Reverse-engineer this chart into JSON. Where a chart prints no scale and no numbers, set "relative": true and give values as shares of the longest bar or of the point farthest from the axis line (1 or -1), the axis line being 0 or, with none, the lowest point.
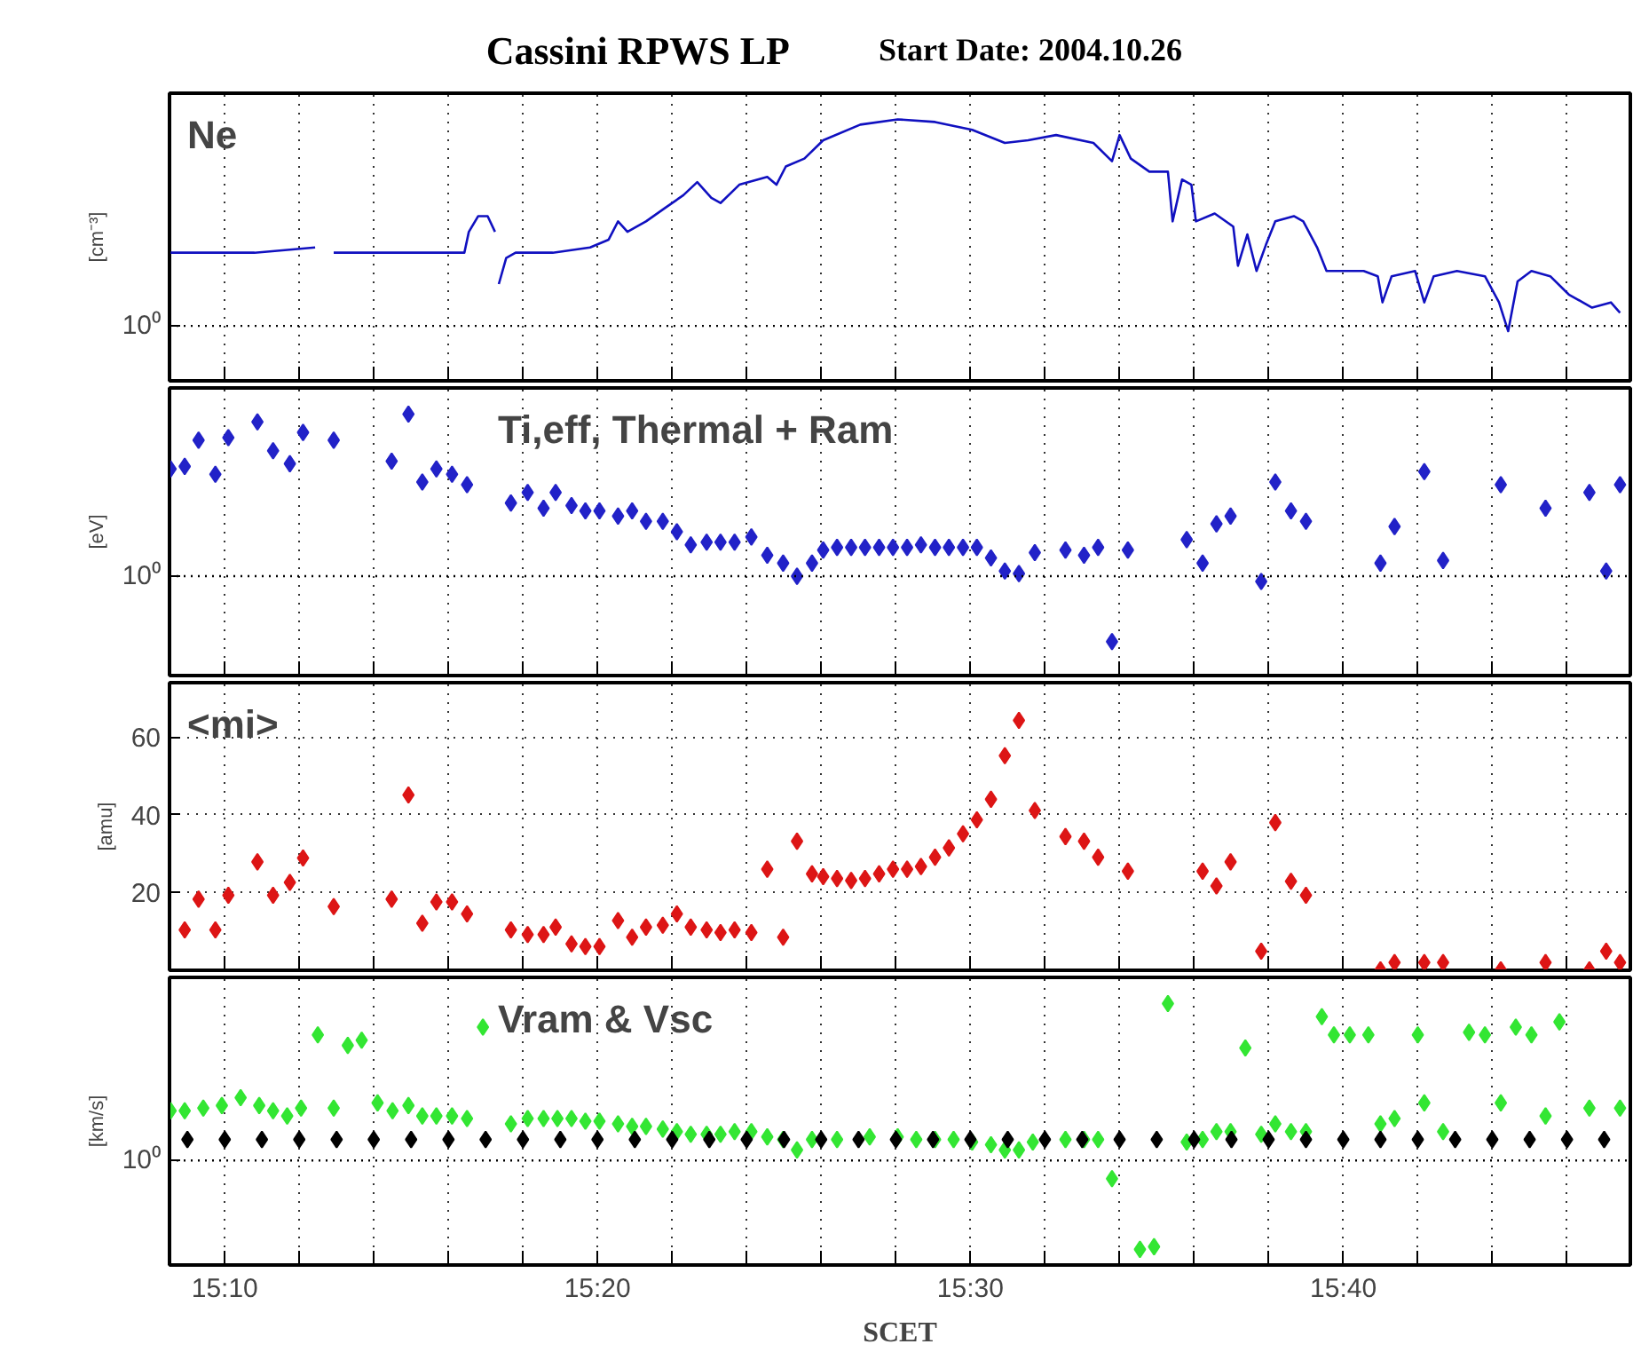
{
  "chart_data": [
    {
      "type": "line",
      "title": "Cassini RPWS LP",
      "subtitle": "Start Date: 2004.10.26",
      "ylabel": "[cm⁻³]",
      "relative": true,
      "annotations": [
        "Ne"
      ],
      "tick_labels": false,
      "grid": "x",
      "marker": "none",
      "xlim": [
        15.142,
        15.795
      ],
      "xticks": [
        {
          "value": 15.1667,
          "label": null
        },
        {
          "value": 15.2,
          "label": null
        },
        {
          "value": 15.2333,
          "label": null
        },
        {
          "value": 15.2667,
          "label": null
        },
        {
          "value": 15.3,
          "label": null
        },
        {
          "value": 15.3333,
          "label": null
        },
        {
          "value": 15.3667,
          "label": null
        },
        {
          "value": 15.4,
          "label": null
        },
        {
          "value": 15.4333,
          "label": null
        },
        {
          "value": 15.4667,
          "label": null
        },
        {
          "value": 15.5,
          "label": null
        },
        {
          "value": 15.5333,
          "label": null
        },
        {
          "value": 15.5667,
          "label": null
        },
        {
          "value": 15.6,
          "label": null
        },
        {
          "value": 15.6333,
          "label": null
        },
        {
          "value": 15.6667,
          "label": null
        },
        {
          "value": 15.7,
          "label": null
        },
        {
          "value": 15.7333,
          "label": null
        },
        {
          "value": 15.7667,
          "label": null
        }
      ],
      "ref_lines": [
        {
          "axis": "y",
          "value": 0.21,
          "label": "10⁰",
          "color": "#000000",
          "line_style": "dotted"
        }
      ],
      "series": [
        {
          "color": "#1010c0",
          "x": [
            15.1425,
            15.1634,
            15.18,
            15.2071,
            15.2113,
            15.2154,
            15.2738,
            15.2758,
            15.28,
            15.2842,
            15.2875,
            15.2883,
            15.2892,
            15.2925,
            15.2967,
            15.3133,
            15.33,
            15.3383,
            15.3425,
            15.3467,
            15.355,
            15.3633,
            15.3717,
            15.3779,
            15.3842,
            15.3883,
            15.3967,
            15.4092,
            15.4133,
            15.4175,
            15.4258,
            15.4342,
            15.4508,
            15.4675,
            15.4842,
            15.5008,
            15.5154,
            15.5258,
            15.5383,
            15.555,
            15.5633,
            15.5667,
            15.5717,
            15.58,
            15.5883,
            15.5904,
            15.5946,
            15.5988,
            15.6008,
            15.6092,
            15.6175,
            15.6196,
            15.6238,
            15.6279,
            15.6321,
            15.6363,
            15.6446,
            15.6488,
            15.655,
            15.6592,
            15.6758,
            15.6821,
            15.6842,
            15.6883,
            15.6988,
            15.7029,
            15.7071,
            15.7175,
            15.73,
            15.7363,
            15.7404,
            15.7446,
            15.7508,
            15.7592,
            15.7675,
            15.7779,
            15.7863,
            15.7904
          ],
          "values": [
            0.49,
            0.49,
            0.49,
            0.51,
            null,
            0.49,
            0.49,
            0.57,
            0.63,
            0.63,
            0.57,
            null,
            0.37,
            0.47,
            0.49,
            0.49,
            0.51,
            0.54,
            0.61,
            0.57,
            0.61,
            0.66,
            0.71,
            0.76,
            0.7,
            0.68,
            0.75,
            0.78,
            0.75,
            0.82,
            0.85,
            0.92,
            0.98,
            1.0,
            0.99,
            0.96,
            0.91,
            0.92,
            0.94,
            0.91,
            0.84,
            0.94,
            0.85,
            0.8,
            0.8,
            0.61,
            0.77,
            0.75,
            0.61,
            0.64,
            0.59,
            0.44,
            0.56,
            0.42,
            0.52,
            0.61,
            0.63,
            0.61,
            0.51,
            0.42,
            0.42,
            0.4,
            0.3,
            0.4,
            0.42,
            0.3,
            0.4,
            0.42,
            0.4,
            0.3,
            0.19,
            0.38,
            0.42,
            0.4,
            0.33,
            0.28,
            0.3,
            0.26
          ]
        }
      ]
    },
    {
      "type": "scatter",
      "ylabel": "[eV]",
      "relative": true,
      "annotations": [
        "Ti,eff, Thermal + Ram"
      ],
      "tick_labels": false,
      "grid": "x",
      "marker": "diamond",
      "xlim": [
        15.142,
        15.795
      ],
      "xticks": [
        {
          "value": 15.1667,
          "label": null
        },
        {
          "value": 15.2,
          "label": null
        },
        {
          "value": 15.2333,
          "label": null
        },
        {
          "value": 15.2667,
          "label": null
        },
        {
          "value": 15.3,
          "label": null
        },
        {
          "value": 15.3333,
          "label": null
        },
        {
          "value": 15.3667,
          "label": null
        },
        {
          "value": 15.4,
          "label": null
        },
        {
          "value": 15.4333,
          "label": null
        },
        {
          "value": 15.4667,
          "label": null
        },
        {
          "value": 15.5,
          "label": null
        },
        {
          "value": 15.5333,
          "label": null
        },
        {
          "value": 15.5667,
          "label": null
        },
        {
          "value": 15.6,
          "label": null
        },
        {
          "value": 15.6333,
          "label": null
        },
        {
          "value": 15.6667,
          "label": null
        },
        {
          "value": 15.7,
          "label": null
        },
        {
          "value": 15.7333,
          "label": null
        },
        {
          "value": 15.7667,
          "label": null
        }
      ],
      "ref_lines": [
        {
          "axis": "y",
          "value": 0.38,
          "label": "10⁰",
          "color": "#000000",
          "line_style": "dotted"
        }
      ],
      "series": [
        {
          "color": "#2222c8",
          "x": [
            15.1425,
            15.1488,
            15.155,
            15.1625,
            15.1683,
            15.1813,
            15.1883,
            15.1958,
            15.2017,
            15.2154,
            15.2413,
            15.2488,
            15.255,
            15.2613,
            15.2683,
            15.275,
            15.2946,
            15.3021,
            15.3092,
            15.3146,
            15.3217,
            15.3279,
            15.3342,
            15.3425,
            15.3488,
            15.355,
            15.3625,
            15.3688,
            15.375,
            15.3821,
            15.3883,
            15.3946,
            15.4021,
            15.4092,
            15.4163,
            15.4225,
            15.4292,
            15.4342,
            15.4404,
            15.4467,
            15.4529,
            15.4592,
            15.4654,
            15.4717,
            15.4779,
            15.4842,
            15.4904,
            15.4967,
            15.5029,
            15.5092,
            15.5154,
            15.5217,
            15.5288,
            15.5425,
            15.5508,
            15.5571,
            15.5633,
            15.5704,
            15.5967,
            15.6038,
            15.61,
            15.6163,
            15.63,
            15.6363,
            15.6433,
            15.65,
            15.6833,
            15.6896,
            15.7029,
            15.7113,
            15.7371,
            15.7571,
            15.7767,
            15.7842,
            15.7904
          ],
          "values": [
            0.79,
            0.8,
            0.9,
            0.77,
            0.91,
            0.97,
            0.86,
            0.81,
            0.93,
            0.9,
            0.82,
            1.0,
            0.74,
            0.79,
            0.77,
            0.73,
            0.66,
            0.7,
            0.64,
            0.7,
            0.65,
            0.63,
            0.63,
            0.61,
            0.63,
            0.59,
            0.59,
            0.55,
            0.5,
            0.51,
            0.51,
            0.51,
            0.53,
            0.46,
            0.43,
            0.38,
            0.43,
            0.48,
            0.49,
            0.49,
            0.49,
            0.49,
            0.49,
            0.49,
            0.5,
            0.49,
            0.49,
            0.49,
            0.49,
            0.45,
            0.4,
            0.39,
            0.47,
            0.48,
            0.46,
            0.49,
            0.13,
            0.48,
            0.52,
            0.43,
            0.58,
            0.61,
            0.36,
            0.74,
            0.63,
            0.59,
            0.43,
            0.57,
            0.78,
            0.44,
            0.73,
            0.64,
            0.7,
            0.4,
            0.73
          ]
        }
      ]
    },
    {
      "type": "scatter",
      "ylabel": "[amu]",
      "annotations": [
        "<mi>"
      ],
      "tick_labels": "y",
      "grid": true,
      "marker": "diamond",
      "xlim": [
        15.142,
        15.795
      ],
      "ylim": [
        0,
        74
      ],
      "yticks": [
        20,
        40,
        60
      ],
      "xticks": [
        {
          "value": 15.1667,
          "label": null
        },
        {
          "value": 15.2,
          "label": null
        },
        {
          "value": 15.2333,
          "label": null
        },
        {
          "value": 15.2667,
          "label": null
        },
        {
          "value": 15.3,
          "label": null
        },
        {
          "value": 15.3333,
          "label": null
        },
        {
          "value": 15.3667,
          "label": null
        },
        {
          "value": 15.4,
          "label": null
        },
        {
          "value": 15.4333,
          "label": null
        },
        {
          "value": 15.4667,
          "label": null
        },
        {
          "value": 15.5,
          "label": null
        },
        {
          "value": 15.5333,
          "label": null
        },
        {
          "value": 15.5667,
          "label": null
        },
        {
          "value": 15.6,
          "label": null
        },
        {
          "value": 15.6333,
          "label": null
        },
        {
          "value": 15.6667,
          "label": null
        },
        {
          "value": 15.7,
          "label": null
        },
        {
          "value": 15.7333,
          "label": null
        },
        {
          "value": 15.7667,
          "label": null
        }
      ],
      "series": [
        {
          "color": "#dd1515",
          "x": [
            15.1488,
            15.155,
            15.1625,
            15.1683,
            15.1813,
            15.1883,
            15.1958,
            15.2017,
            15.2154,
            15.2413,
            15.2488,
            15.255,
            15.2613,
            15.2683,
            15.275,
            15.2946,
            15.3021,
            15.3092,
            15.3146,
            15.3217,
            15.3279,
            15.3342,
            15.3425,
            15.3488,
            15.355,
            15.3625,
            15.3688,
            15.375,
            15.3821,
            15.3883,
            15.3946,
            15.4021,
            15.4092,
            15.4163,
            15.4225,
            15.4292,
            15.4342,
            15.4404,
            15.4467,
            15.4529,
            15.4592,
            15.4654,
            15.4717,
            15.4779,
            15.4842,
            15.4904,
            15.4967,
            15.5029,
            15.5092,
            15.5154,
            15.5217,
            15.5288,
            15.5425,
            15.5508,
            15.5571,
            15.5704,
            15.6038,
            15.61,
            15.6163,
            15.63,
            15.6363,
            15.6433,
            15.65,
            15.6833,
            15.6896,
            15.7029,
            15.7113,
            15.7371,
            15.7571,
            15.7767,
            15.7842,
            15.7904
          ],
          "values": [
            10.4,
            18.3,
            10.4,
            19.3,
            27.9,
            19.3,
            22.6,
            28.9,
            16.4,
            18.3,
            45.1,
            12.1,
            17.6,
            17.6,
            14.5,
            10.4,
            9.2,
            9.2,
            11.1,
            6.8,
            6.1,
            6.1,
            12.8,
            8.5,
            11.1,
            11.6,
            14.5,
            11.1,
            10.4,
            9.7,
            10.4,
            9.7,
            26.0,
            8.5,
            33.2,
            24.8,
            24.1,
            23.6,
            23.1,
            23.6,
            24.8,
            26.0,
            26.0,
            26.7,
            29.1,
            31.5,
            35.1,
            38.7,
            44.0,
            55.2,
            64.3,
            41.1,
            34.4,
            33.2,
            29.1,
            25.5,
            25.5,
            21.7,
            27.9,
            4.9,
            38.0,
            22.9,
            19.3,
            0.1,
            2.0,
            2.0,
            2.0,
            0.1,
            2.0,
            0.1,
            4.9,
            2.0
          ]
        }
      ]
    },
    {
      "type": "scatter",
      "ylabel": "[km/s]",
      "xlabel": "SCET",
      "relative": true,
      "annotations": [
        "Vram & Vsc"
      ],
      "tick_labels": "x",
      "grid": "x",
      "marker": "diamond",
      "xlim": [
        15.142,
        15.795
      ],
      "xticks": [
        {
          "value": 15.1667,
          "label": "15:10"
        },
        {
          "value": 15.2,
          "label": null
        },
        {
          "value": 15.2333,
          "label": null
        },
        {
          "value": 15.2667,
          "label": null
        },
        {
          "value": 15.3,
          "label": null
        },
        {
          "value": 15.3333,
          "label": "15:20"
        },
        {
          "value": 15.3667,
          "label": null
        },
        {
          "value": 15.4,
          "label": null
        },
        {
          "value": 15.4333,
          "label": null
        },
        {
          "value": 15.4667,
          "label": null
        },
        {
          "value": 15.5,
          "label": "15:30"
        },
        {
          "value": 15.5333,
          "label": null
        },
        {
          "value": 15.5667,
          "label": null
        },
        {
          "value": 15.6,
          "label": null
        },
        {
          "value": 15.6333,
          "label": null
        },
        {
          "value": 15.6667,
          "label": "15:40"
        },
        {
          "value": 15.7,
          "label": null
        },
        {
          "value": 15.7333,
          "label": null
        },
        {
          "value": 15.7667,
          "label": null
        }
      ],
      "ref_lines": [
        {
          "axis": "y",
          "value": 0.4,
          "label": "10⁰",
          "color": "#000000",
          "line_style": "dotted"
        }
      ],
      "series": [
        {
          "color": "#33e633",
          "x": [
            15.1425,
            15.1488,
            15.1571,
            15.1654,
            15.1738,
            15.1821,
            15.1883,
            15.1946,
            15.2008,
            15.2083,
            15.2154,
            15.2217,
            15.2279,
            15.235,
            15.2417,
            15.2488,
            15.255,
            15.2613,
            15.2683,
            15.275,
            15.2821,
            15.2946,
            15.3021,
            15.3092,
            15.3154,
            15.3217,
            15.3279,
            15.3342,
            15.3425,
            15.3488,
            15.355,
            15.3625,
            15.3688,
            15.375,
            15.3821,
            15.3883,
            15.3946,
            15.4021,
            15.4092,
            15.4163,
            15.4225,
            15.4292,
            15.4404,
            15.455,
            15.4675,
            15.4758,
            15.4842,
            15.4925,
            15.5008,
            15.5092,
            15.5154,
            15.5217,
            15.5279,
            15.5425,
            15.5508,
            15.5571,
            15.5633,
            15.5758,
            15.5821,
            15.5883,
            15.5967,
            15.6038,
            15.61,
            15.6163,
            15.6229,
            15.63,
            15.6363,
            15.6433,
            15.65,
            15.6571,
            15.6625,
            15.6696,
            15.6779,
            15.6833,
            15.6896,
            15.7,
            15.7029,
            15.7113,
            15.7229,
            15.73,
            15.7371,
            15.7438,
            15.7508,
            15.7571,
            15.7633,
            15.7767,
            15.7904
          ],
          "values": [
            0.59,
            0.59,
            0.6,
            0.61,
            0.64,
            0.61,
            0.59,
            0.57,
            0.6,
            0.88,
            0.6,
            0.84,
            0.86,
            0.62,
            0.59,
            0.61,
            0.57,
            0.57,
            0.57,
            0.56,
            0.91,
            0.54,
            0.56,
            0.56,
            0.56,
            0.56,
            0.55,
            0.55,
            0.54,
            0.53,
            0.53,
            0.52,
            0.51,
            0.5,
            0.5,
            0.5,
            0.51,
            0.51,
            0.49,
            0.48,
            0.44,
            0.48,
            0.48,
            0.49,
            0.49,
            0.48,
            0.48,
            0.48,
            0.47,
            0.46,
            0.44,
            0.44,
            0.47,
            0.48,
            0.48,
            0.48,
            0.33,
            0.06,
            0.07,
            1.0,
            0.47,
            0.48,
            0.51,
            0.51,
            0.83,
            0.5,
            0.54,
            0.51,
            0.51,
            0.95,
            0.88,
            0.88,
            0.88,
            0.54,
            0.56,
            0.88,
            0.62,
            0.51,
            0.89,
            0.88,
            0.62,
            0.91,
            0.88,
            0.57,
            0.93,
            0.6,
            0.6
          ]
        },
        {
          "color": "#000000",
          "x": [
            15.15,
            15.1667,
            15.1833,
            15.2,
            15.2167,
            15.2333,
            15.25,
            15.2667,
            15.2833,
            15.3,
            15.3167,
            15.3333,
            15.35,
            15.3667,
            15.3833,
            15.4,
            15.4167,
            15.4333,
            15.45,
            15.4667,
            15.4833,
            15.5,
            15.5167,
            15.5333,
            15.55,
            15.5667,
            15.5833,
            15.6,
            15.6167,
            15.6333,
            15.65,
            15.6667,
            15.6833,
            15.7,
            15.7167,
            15.7333,
            15.75,
            15.7667,
            15.7833
          ],
          "values": [
            0.48,
            0.48,
            0.48,
            0.48,
            0.48,
            0.48,
            0.48,
            0.48,
            0.48,
            0.48,
            0.48,
            0.48,
            0.48,
            0.48,
            0.48,
            0.48,
            0.48,
            0.48,
            0.48,
            0.48,
            0.48,
            0.48,
            0.48,
            0.48,
            0.48,
            0.48,
            0.48,
            0.48,
            0.48,
            0.48,
            0.48,
            0.48,
            0.48,
            0.48,
            0.48,
            0.48,
            0.48,
            0.48,
            0.48
          ]
        }
      ]
    }
  ]
}
